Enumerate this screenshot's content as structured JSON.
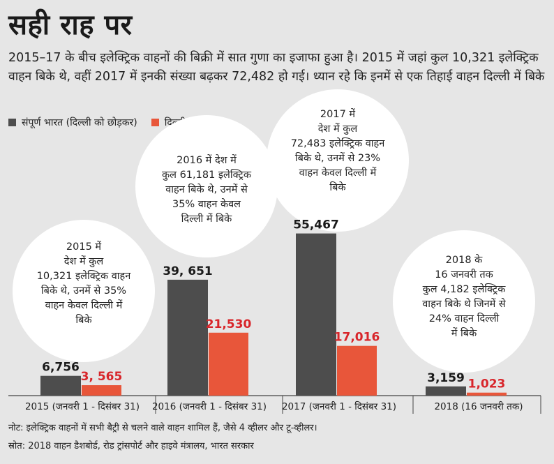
{
  "title": "सही राह पर",
  "subtitle": "2015–17 के बीच इलेक्ट्रिक वाहनों की बिक्री में सात गुणा का इजाफा हुआ है। 2015 में जहां कुल 10,321 इलेक्ट्रिक वाहन बिके थे, वहीं 2017 में इनकी संख्या बढ़कर 72,482 हो गई। ध्यान रहे कि इनमें से एक तिहाई वाहन दिल्ली में बिके",
  "legend": {
    "series1": "संपूर्ण भारत (दिल्ली को छोड़कर)",
    "series2": "दिल्ली"
  },
  "colors": {
    "series1": "#4d4d4d",
    "series2": "#e8563a",
    "series2_label": "#d8252a",
    "bubble": "#ffffff",
    "background": "#e6e6e6"
  },
  "chart_data": {
    "type": "bar",
    "categories": [
      "2015 (जनवरी 1 - दिसंबर 31)",
      "2016 (जनवरी 1 - दिसंबर 31)",
      "2017 (जनवरी 1 - दिसंबर 31)",
      "2018 (16 जनवरी तक)"
    ],
    "series": [
      {
        "name": "संपूर्ण भारत (दिल्ली को छोड़कर)",
        "values": [
          6756,
          39651,
          55467,
          3159
        ],
        "labels": [
          "6,756",
          "39, 651",
          "55,467",
          "3,159"
        ]
      },
      {
        "name": "दिल्ली",
        "values": [
          3565,
          21530,
          17016,
          1023
        ],
        "labels": [
          "3, 565",
          "21,530",
          "17,016",
          "1,023"
        ]
      }
    ],
    "ylim": [
      0,
      65000
    ],
    "grid": false,
    "legend_position": "top-left",
    "annotations": [
      {
        "lines": [
          "2015 में",
          "देश में कुल",
          "10,321 इलेक्ट्रिक वाहन",
          "बिके थे, उनमें से 35%",
          "वाहन केवल दिल्ली में",
          "बिके"
        ]
      },
      {
        "lines": [
          "2016 में देश में",
          "कुल 61,181 इलेक्ट्रिक",
          "वाहन बिके थे, उनमें से",
          "35% वाहन केवल",
          "दिल्ली में बिके"
        ]
      },
      {
        "lines": [
          "2017 में",
          "देश में कुल",
          "72,483 इलेक्ट्रिक वाहन",
          "बिके थे, उनमें से 23%",
          "वाहन केवल दिल्ली में",
          "बिके"
        ]
      },
      {
        "lines": [
          "2018 के",
          "16 जनवरी तक",
          "कुल 4,182 इलेक्ट्रिक",
          "वाहन बिके थे जिनमें से",
          "24% वाहन दिल्ली",
          "में बिके"
        ]
      }
    ]
  },
  "footnotes": {
    "note": "नोट: इलेक्ट्रिक वाहनों में सभी बैट्री से चलने वाले वाहन शामिल हैं, जैसे 4 व्हीलर और टू-व्हीलर।",
    "source": "स्रोत: 2018 वाहन डैशबोर्ड, रोड ट्रांसपोर्ट और हाइवे मंत्रालय, भारत सरकार"
  }
}
